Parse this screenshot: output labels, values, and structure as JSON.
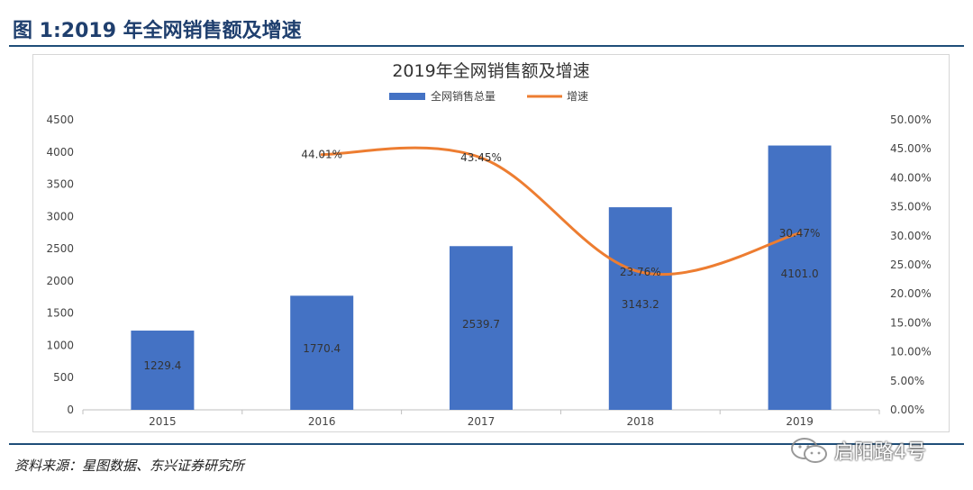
{
  "figure": {
    "title": "图 1:2019 年全网销售额及增速",
    "source": "资料来源：星图数据、东兴证券研究所",
    "watermark": "启阳路4号"
  },
  "colors": {
    "bar": "#4472c4",
    "line": "#ed7d31",
    "rule": "#1f4e79",
    "title": "#1f3f6e"
  },
  "chart_data": {
    "type": "bar",
    "title": "2019年全网销售额及增速",
    "categories": [
      "2015",
      "2016",
      "2017",
      "2018",
      "2019"
    ],
    "series": [
      {
        "name": "全网销售总量",
        "type": "bar",
        "axis": "left",
        "values": [
          1229.4,
          1770.4,
          2539.7,
          3143.2,
          4101.0
        ],
        "labels": [
          "1229.4",
          "1770.4",
          "2539.7",
          "3143.2",
          "4101.0"
        ]
      },
      {
        "name": "增速",
        "type": "line",
        "axis": "right",
        "x": [
          "2016",
          "2017",
          "2018",
          "2019"
        ],
        "values": [
          44.01,
          43.45,
          23.76,
          30.47
        ],
        "labels": [
          "44.01%",
          "43.45%",
          "23.76%",
          "30.47%"
        ]
      }
    ],
    "y_left": {
      "ylim": [
        0,
        4500
      ],
      "ticks": [
        "0",
        "500",
        "1000",
        "1500",
        "2000",
        "2500",
        "3000",
        "3500",
        "4000",
        "4500"
      ]
    },
    "y_right": {
      "ylim": [
        0,
        50
      ],
      "ticks": [
        "0.00%",
        "5.00%",
        "10.00%",
        "15.00%",
        "20.00%",
        "25.00%",
        "30.00%",
        "35.00%",
        "40.00%",
        "45.00%",
        "50.00%"
      ]
    },
    "legend_position": "top-center",
    "grid": false
  }
}
